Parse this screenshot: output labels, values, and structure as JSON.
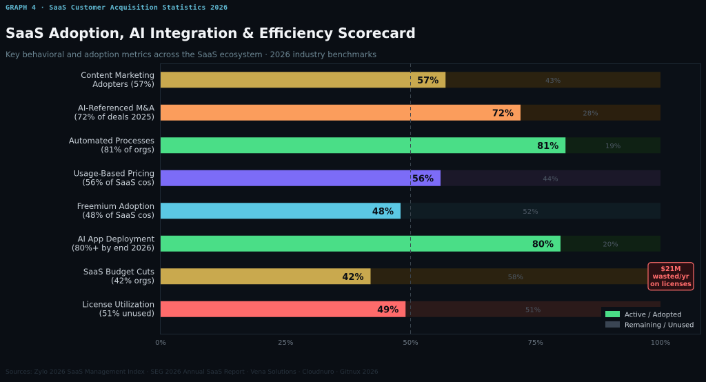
{
  "header": {
    "graph_label": "GRAPH 4  ·  SaaS Customer Acquisition Statistics 2026",
    "title": "SaaS Adoption, AI Integration & Efficiency Scorecard",
    "subtitle": "Key behavioral and adoption metrics across the SaaS ecosystem  ·  2026 industry benchmarks"
  },
  "footer": {
    "sources": "Sources: Zylo 2026 SaaS Management Index · SEG 2026 Annual SaaS Report · Vena Solutions · Cloudnuro · Gitnux 2026"
  },
  "chart_data": {
    "type": "bar",
    "orientation": "horizontal",
    "stacked": true,
    "categories": [
      [
        "Content Marketing",
        "Adopters (57%)"
      ],
      [
        "AI-Referenced M&A",
        "(72% of deals 2025)"
      ],
      [
        "Automated Processes",
        "(81% of orgs)"
      ],
      [
        "Usage-Based Pricing",
        "(56% of SaaS cos)"
      ],
      [
        "Freemium Adoption",
        "(48% of SaaS cos)"
      ],
      [
        "AI App Deployment",
        "(80%+ by end 2026)"
      ],
      [
        "SaaS Budget Cuts",
        "(42% orgs)"
      ],
      [
        "License Utilization",
        "(51% unused)"
      ]
    ],
    "series": [
      {
        "name": "Active / Adopted",
        "values": [
          57,
          72,
          81,
          56,
          48,
          80,
          42,
          49
        ]
      },
      {
        "name": "Remaining / Unused",
        "values": [
          43,
          28,
          19,
          44,
          52,
          20,
          58,
          51
        ]
      }
    ],
    "value_labels": [
      "57%",
      "72%",
      "81%",
      "56%",
      "48%",
      "80%",
      "42%",
      "49%"
    ],
    "remaining_labels": [
      "43%",
      "28%",
      "19%",
      "44%",
      "52%",
      "20%",
      "58%",
      "51%"
    ],
    "bar_colors": [
      "#c9a94e",
      "#fb9d5c",
      "#4ade87",
      "#7c6cf7",
      "#5bc8e4",
      "#4ade87",
      "#c9a94e",
      "#ff6b6b"
    ],
    "remaining_colors": [
      "#2b2210",
      "#2b1f0e",
      "#0f2114",
      "#1b1829",
      "#0f1c23",
      "#0f2114",
      "#2b2210",
      "#2b1a1a"
    ],
    "xlim": [
      0,
      100
    ],
    "x_ticks": [
      "0%",
      "25%",
      "50%",
      "75%",
      "100%"
    ],
    "reference_line": 50,
    "grid": false,
    "annotation": {
      "lines": [
        "$21M",
        "wasted/yr",
        "on licenses"
      ],
      "row": 6,
      "color": "#ff6b6b"
    },
    "legend": {
      "placement": "bottom-right",
      "items": [
        {
          "label": "Active / Adopted",
          "color": "#4ade87"
        },
        {
          "label": "Remaining / Unused",
          "color": "#3a4553"
        }
      ]
    }
  }
}
